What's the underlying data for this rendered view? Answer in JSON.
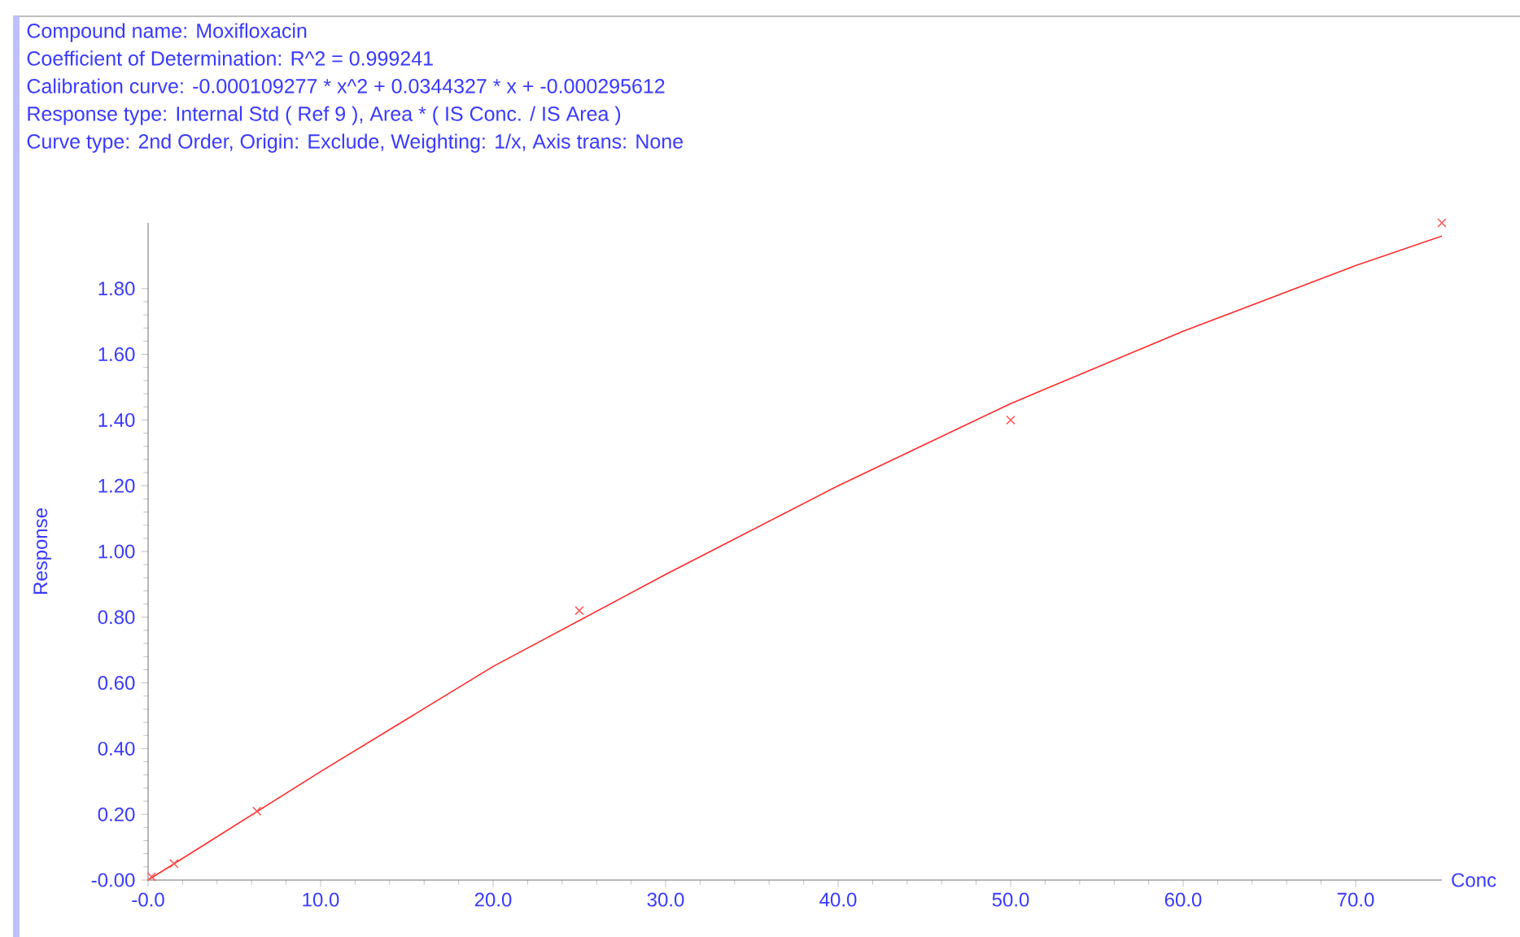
{
  "chart_data": {
    "type": "scatter",
    "annotations": [
      "Compound name: Moxifloxacin",
      "Coefficient of Determination: R^2 = 0.999241",
      "Calibration curve: -0.000109277 * x^2 + 0.0344327 * x + -0.000295612",
      "Response type: Internal Std ( Ref 9 ), Area * ( IS Conc. / IS Area )",
      "Curve type: 2nd Order, Origin: Exclude, Weighting: 1/x, Axis trans: None"
    ],
    "xlabel": "Conc",
    "ylabel": "Response",
    "xlim": [
      0,
      75
    ],
    "ylim": [
      0,
      2.0
    ],
    "xticks": [
      {
        "value": 0,
        "label": "-0.0"
      },
      {
        "value": 10,
        "label": "10.0"
      },
      {
        "value": 20,
        "label": "20.0"
      },
      {
        "value": 30,
        "label": "30.0"
      },
      {
        "value": 40,
        "label": "40.0"
      },
      {
        "value": 50,
        "label": "50.0"
      },
      {
        "value": 60,
        "label": "60.0"
      },
      {
        "value": 70,
        "label": "70.0"
      }
    ],
    "yticks": [
      {
        "value": 0,
        "label": "-0.00"
      },
      {
        "value": 0.2,
        "label": "0.20"
      },
      {
        "value": 0.4,
        "label": "0.40"
      },
      {
        "value": 0.6,
        "label": "0.60"
      },
      {
        "value": 0.8,
        "label": "0.80"
      },
      {
        "value": 1.0,
        "label": "1.00"
      },
      {
        "value": 1.2,
        "label": "1.20"
      },
      {
        "value": 1.4,
        "label": "1.40"
      },
      {
        "value": 1.6,
        "label": "1.60"
      },
      {
        "value": 1.8,
        "label": "1.80"
      }
    ],
    "grid": false,
    "series": [
      {
        "color": "#ff5a5a",
        "marker": "cross",
        "x": [
          0.2,
          1.5,
          6.3,
          25,
          50,
          75
        ],
        "values": [
          0.01,
          0.05,
          0.21,
          0.82,
          1.4,
          2.0
        ]
      },
      {
        "type": "line",
        "color": "#ff2a2a",
        "marker": "none",
        "line_style": "solid",
        "x": [
          0,
          10,
          20,
          30,
          40,
          50,
          60,
          70,
          75
        ],
        "values": [
          0,
          0.33,
          0.65,
          0.93,
          1.2,
          1.45,
          1.67,
          1.87,
          1.96
        ]
      }
    ]
  }
}
